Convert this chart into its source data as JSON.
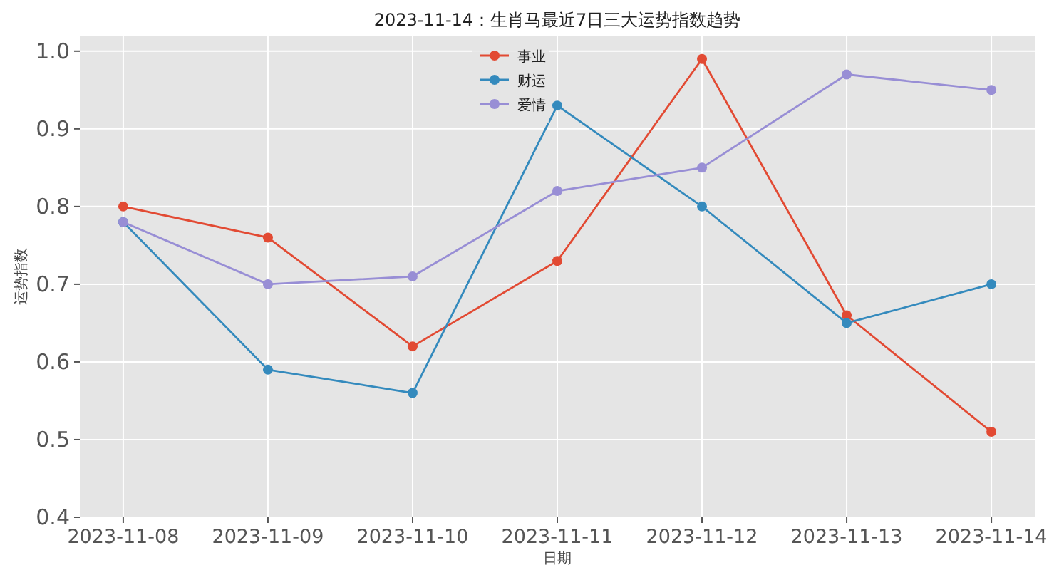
{
  "chart_data": {
    "type": "line",
    "title": "2023-11-14：生肖马最近7日三大运势指数趋势",
    "xlabel": "日期",
    "ylabel": "运势指数",
    "categories": [
      "2023-11-08",
      "2023-11-09",
      "2023-11-10",
      "2023-11-11",
      "2023-11-12",
      "2023-11-13",
      "2023-11-14"
    ],
    "series": [
      {
        "name": "事业",
        "color": "#e24a33",
        "values": [
          0.8,
          0.76,
          0.62,
          0.73,
          0.99,
          0.66,
          0.51
        ]
      },
      {
        "name": "财运",
        "color": "#348abd",
        "values": [
          0.78,
          0.59,
          0.56,
          0.93,
          0.8,
          0.65,
          0.7
        ]
      },
      {
        "name": "爱情",
        "color": "#988ed5",
        "values": [
          0.78,
          0.7,
          0.71,
          0.82,
          0.85,
          0.97,
          0.95
        ]
      }
    ],
    "ylim": [
      0.4,
      1.02
    ],
    "yticks": [
      0.4,
      0.5,
      0.6,
      0.7,
      0.8,
      0.9,
      {
        "value": 1.0,
        "label": "1.0"
      }
    ],
    "grid": true,
    "legend": "top",
    "marker": "circle",
    "line_style": "solid"
  }
}
